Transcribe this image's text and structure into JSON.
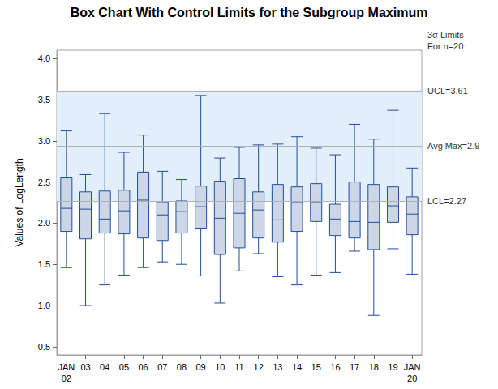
{
  "chart_data": {
    "type": "boxplot",
    "title": "Box Chart With Control Limits for the Subgroup Maximum",
    "y_label": "Values of LogLength",
    "categories": [
      "JAN\n02",
      "03",
      "04",
      "05",
      "06",
      "07",
      "08",
      "09",
      "10",
      "11",
      "12",
      "13",
      "14",
      "15",
      "16",
      "17",
      "18",
      "19",
      "JAN\n20"
    ],
    "boxes": [
      {
        "min": 1.46,
        "q1": 1.9,
        "median": 2.18,
        "q3": 2.55,
        "max": 3.12
      },
      {
        "min": 1.0,
        "q1": 1.81,
        "median": 2.17,
        "q3": 2.38,
        "max": 2.59
      },
      {
        "min": 1.25,
        "q1": 1.88,
        "median": 2.05,
        "q3": 2.39,
        "max": 3.33
      },
      {
        "min": 1.37,
        "q1": 1.87,
        "median": 2.15,
        "q3": 2.4,
        "max": 2.86
      },
      {
        "min": 1.46,
        "q1": 1.82,
        "median": 2.28,
        "q3": 2.62,
        "max": 3.07
      },
      {
        "min": 1.53,
        "q1": 1.79,
        "median": 2.1,
        "q3": 2.26,
        "max": 2.63
      },
      {
        "min": 1.5,
        "q1": 1.88,
        "median": 2.14,
        "q3": 2.27,
        "max": 2.53
      },
      {
        "min": 1.36,
        "q1": 1.94,
        "median": 2.2,
        "q3": 2.45,
        "max": 3.55
      },
      {
        "min": 1.03,
        "q1": 1.62,
        "median": 2.06,
        "q3": 2.51,
        "max": 2.79
      },
      {
        "min": 1.42,
        "q1": 1.7,
        "median": 2.12,
        "q3": 2.54,
        "max": 2.92
      },
      {
        "min": 1.63,
        "q1": 1.82,
        "median": 2.16,
        "q3": 2.38,
        "max": 2.95
      },
      {
        "min": 1.35,
        "q1": 1.77,
        "median": 2.04,
        "q3": 2.47,
        "max": 2.96
      },
      {
        "min": 1.25,
        "q1": 1.9,
        "median": 2.26,
        "q3": 2.44,
        "max": 3.05
      },
      {
        "min": 1.37,
        "q1": 2.02,
        "median": 2.26,
        "q3": 2.48,
        "max": 2.91
      },
      {
        "min": 1.4,
        "q1": 1.85,
        "median": 2.05,
        "q3": 2.23,
        "max": 2.83
      },
      {
        "min": 1.66,
        "q1": 1.82,
        "median": 2.02,
        "q3": 2.5,
        "max": 3.2
      },
      {
        "min": 0.88,
        "q1": 1.68,
        "median": 2.01,
        "q3": 2.47,
        "max": 3.02
      },
      {
        "min": 1.69,
        "q1": 2.01,
        "median": 2.21,
        "q3": 2.44,
        "max": 3.37
      },
      {
        "min": 1.38,
        "q1": 1.86,
        "median": 2.11,
        "q3": 2.32,
        "max": 2.67
      }
    ],
    "color": "#1f4e9c",
    "control_limits": {
      "note": "3σ Limits\nFor n=20:",
      "lines": [
        {
          "label": "UCL=3.61",
          "value": 3.61
        },
        {
          "label": "Avg Max=2.9",
          "value": 2.94
        },
        {
          "label": "LCL=2.27",
          "value": 2.27
        }
      ]
    },
    "ylim": [
      0.4,
      4.1
    ],
    "yticks": [
      0.5,
      {
        "value": 1,
        "label": "1.0"
      },
      1.5,
      {
        "value": 2,
        "label": "2.0"
      },
      2.5,
      {
        "value": 3,
        "label": "3.0"
      },
      3.5,
      {
        "value": 4,
        "label": "4.0"
      }
    ],
    "grid": false
  }
}
